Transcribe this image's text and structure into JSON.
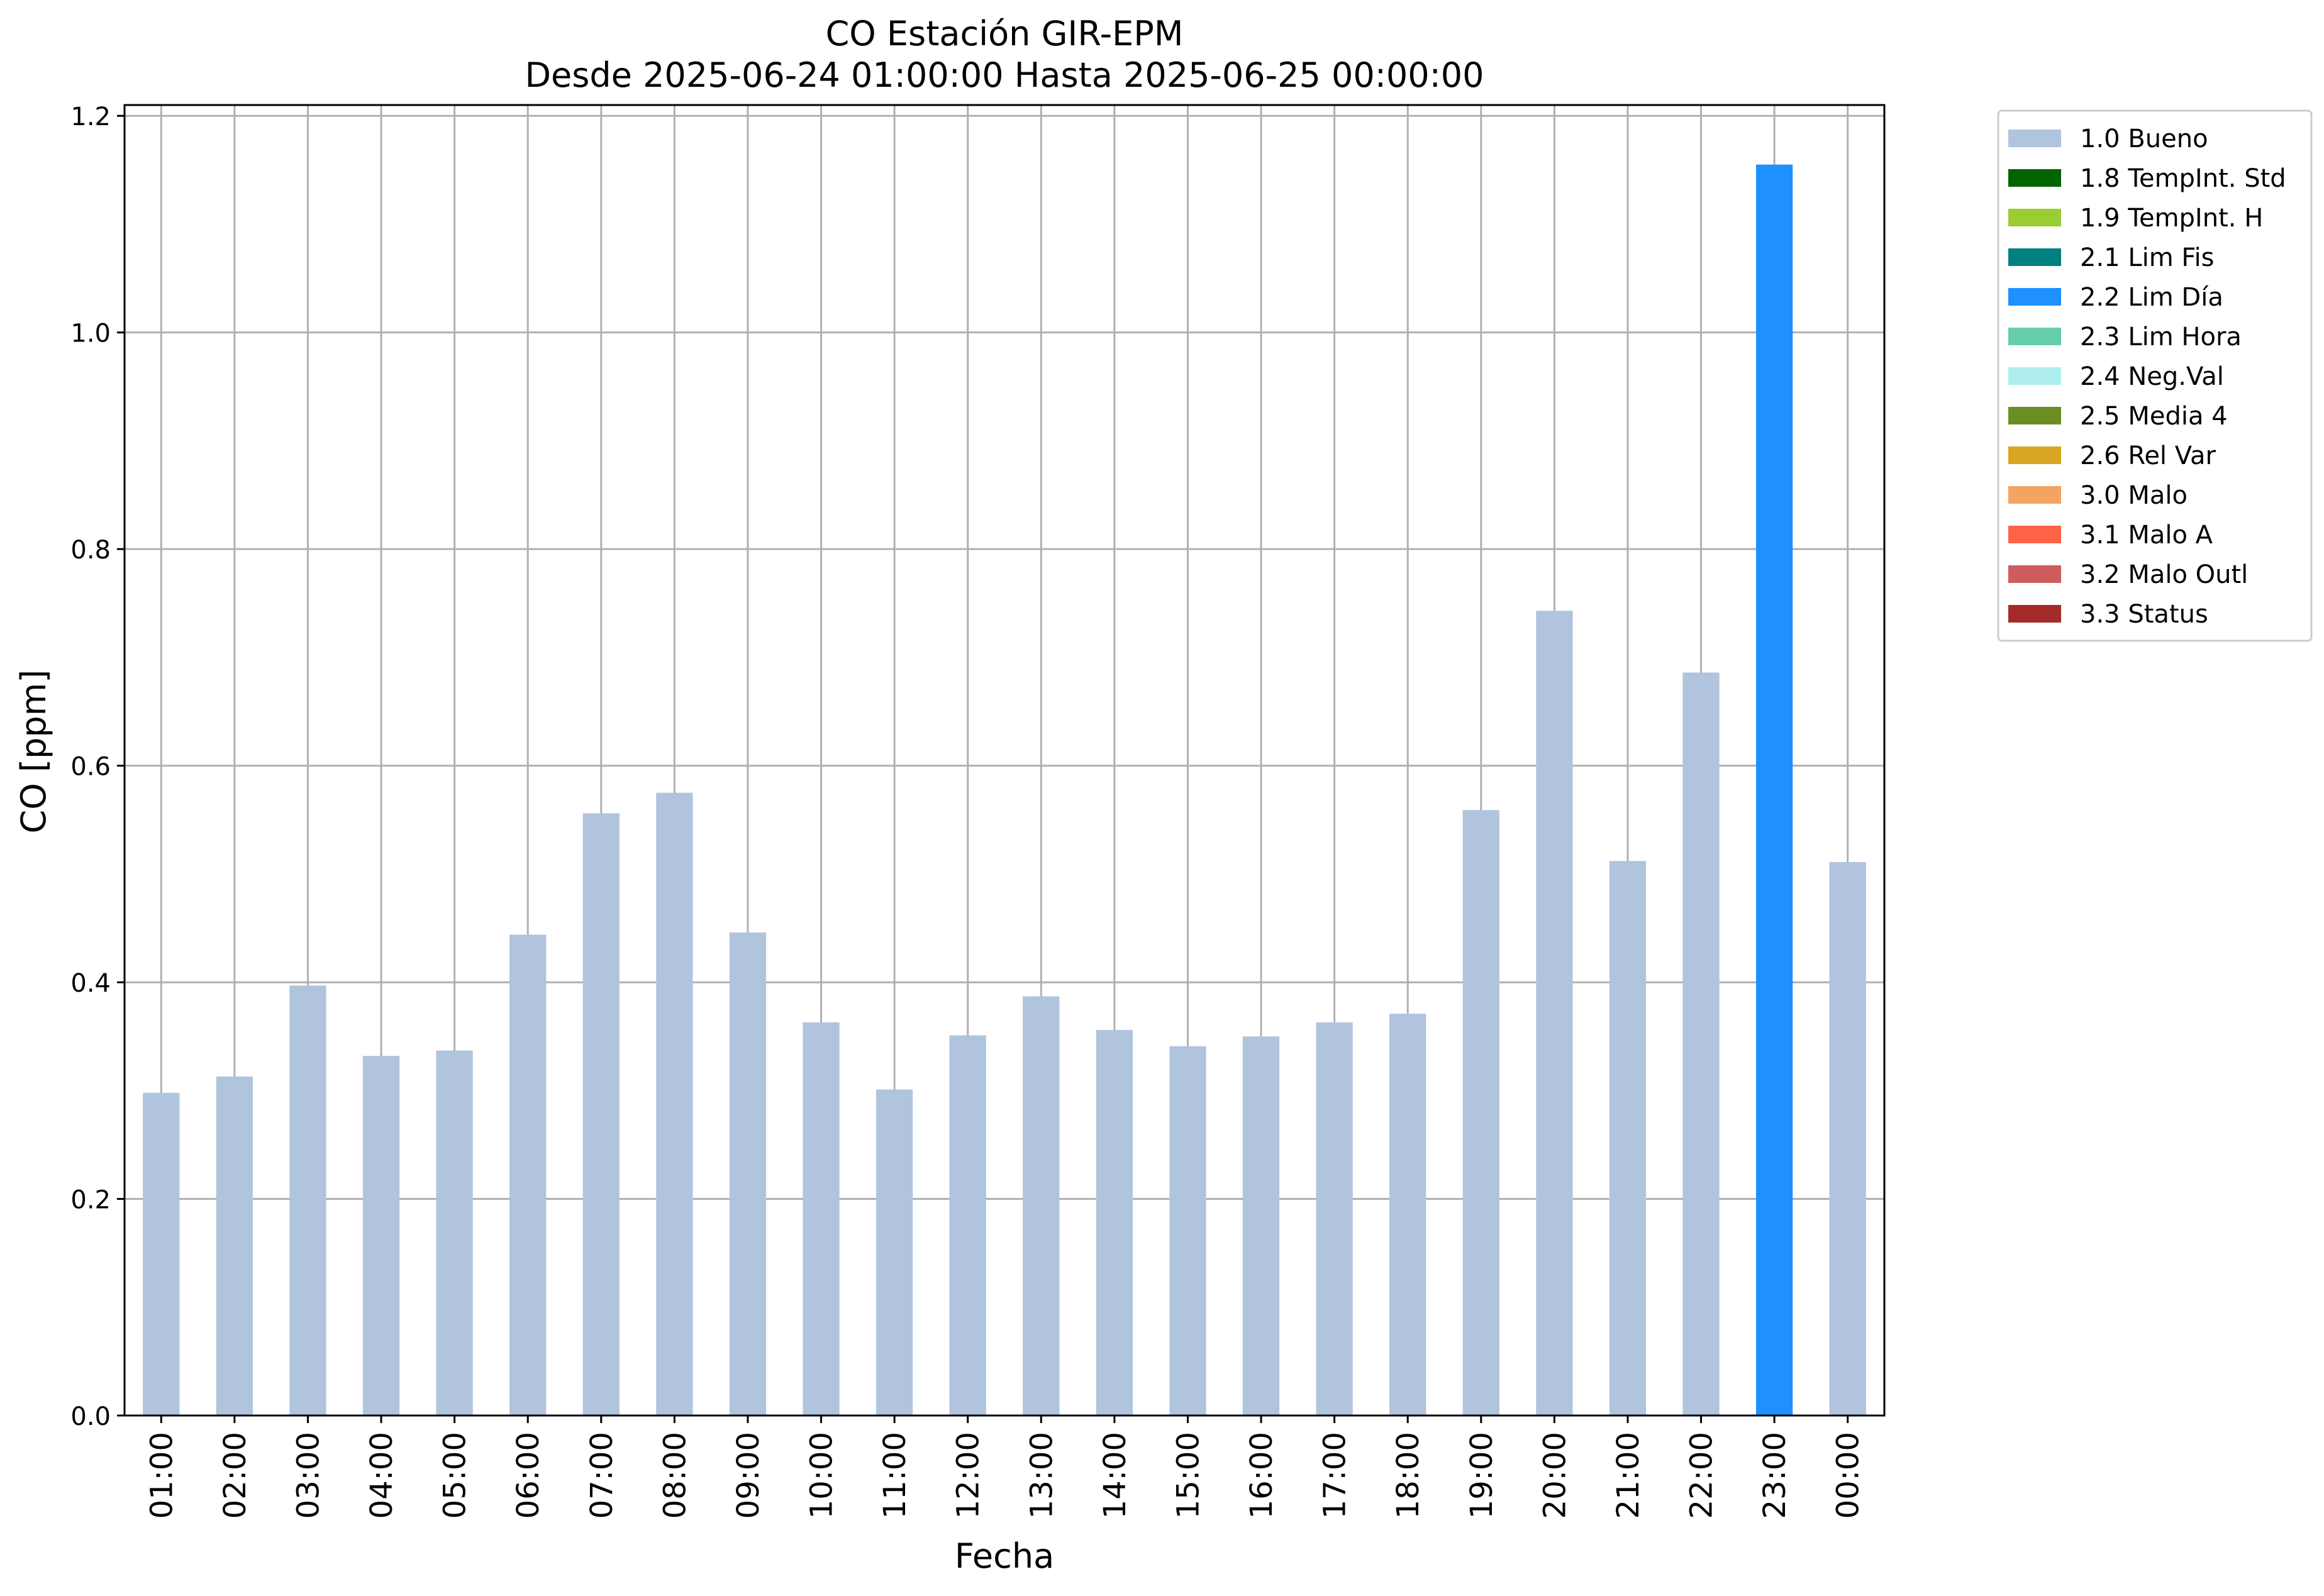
{
  "chart_data": {
    "type": "bar",
    "title": "CO Estación GIR-EPM",
    "subtitle": "Desde 2025-06-24 01:00:00 Hasta 2025-06-25 00:00:00",
    "xlabel": "Fecha",
    "ylabel": "CO [ppm]",
    "ylim": [
      0,
      1.21
    ],
    "yticks": [
      "0.0",
      "0.2",
      "0.4",
      "0.6",
      "0.8",
      "1.0",
      "1.2"
    ],
    "grid": true,
    "legend_position": "outside-top-right",
    "categories": [
      "01:00",
      "02:00",
      "03:00",
      "04:00",
      "05:00",
      "06:00",
      "07:00",
      "08:00",
      "09:00",
      "10:00",
      "11:00",
      "12:00",
      "13:00",
      "14:00",
      "15:00",
      "16:00",
      "17:00",
      "18:00",
      "19:00",
      "20:00",
      "21:00",
      "22:00",
      "23:00",
      "00:00"
    ],
    "values": [
      0.298,
      0.313,
      0.397,
      0.332,
      0.337,
      0.444,
      0.556,
      0.575,
      0.446,
      0.363,
      0.301,
      0.351,
      0.387,
      0.356,
      0.341,
      0.35,
      0.363,
      0.371,
      0.559,
      0.743,
      0.512,
      0.686,
      1.155,
      0.511
    ],
    "flags": [
      "1.0 Bueno",
      "1.0 Bueno",
      "1.0 Bueno",
      "1.0 Bueno",
      "1.0 Bueno",
      "1.0 Bueno",
      "1.0 Bueno",
      "1.0 Bueno",
      "1.0 Bueno",
      "1.0 Bueno",
      "1.0 Bueno",
      "1.0 Bueno",
      "1.0 Bueno",
      "1.0 Bueno",
      "1.0 Bueno",
      "1.0 Bueno",
      "1.0 Bueno",
      "1.0 Bueno",
      "1.0 Bueno",
      "1.0 Bueno",
      "1.0 Bueno",
      "1.0 Bueno",
      "2.2 Lim Día",
      "1.0 Bueno"
    ],
    "legend": [
      {
        "name": "1.0 Bueno",
        "color": "#b0c4de"
      },
      {
        "name": "1.8 TempInt. Std",
        "color": "#006400"
      },
      {
        "name": "1.9 TempInt. H",
        "color": "#9acd32"
      },
      {
        "name": "2.1 Lim Fis",
        "color": "#008080"
      },
      {
        "name": "2.2 Lim Día",
        "color": "#1e90ff"
      },
      {
        "name": "2.3 Lim Hora",
        "color": "#66cdaa"
      },
      {
        "name": "2.4 Neg.Val",
        "color": "#afeeee"
      },
      {
        "name": "2.5 Media 4",
        "color": "#6b8e23"
      },
      {
        "name": "2.6 Rel Var",
        "color": "#daa520"
      },
      {
        "name": "3.0 Malo",
        "color": "#f4a460"
      },
      {
        "name": "3.1 Malo A",
        "color": "#ff6347"
      },
      {
        "name": "3.2 Malo Outl",
        "color": "#cd5c5c"
      },
      {
        "name": "3.3 Status",
        "color": "#a52a2a"
      }
    ],
    "grid_color": "#b0b0b0"
  }
}
